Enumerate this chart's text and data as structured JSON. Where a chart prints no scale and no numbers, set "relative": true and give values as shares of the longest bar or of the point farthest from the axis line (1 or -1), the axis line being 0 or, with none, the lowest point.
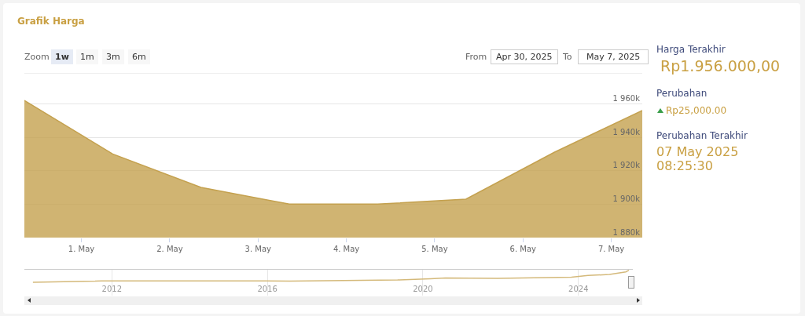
{
  "chart_data": [
    {
      "type": "area",
      "title": "Grafik Harga",
      "x": [
        "2025-04-30T08:30",
        "2025-05-01T08:30",
        "2025-05-02T08:30",
        "2025-05-03T08:30",
        "2025-05-04T08:30",
        "2025-05-05T08:30",
        "2025-05-06T08:30",
        "2025-05-07T08:25"
      ],
      "series": [
        {
          "color": "#c4a14f",
          "values": [
            1962000,
            1930000,
            1910000,
            1900000,
            1900000,
            1903000,
            1931000,
            1956000
          ]
        }
      ],
      "xlim": [
        "2025-04-30T08:30",
        "2025-05-07T08:25"
      ],
      "xticks": [
        {
          "value": "2025-05-01",
          "label": "1. May"
        },
        {
          "value": "2025-05-02",
          "label": "2. May"
        },
        {
          "value": "2025-05-03",
          "label": "3. May"
        },
        {
          "value": "2025-05-04",
          "label": "4. May"
        },
        {
          "value": "2025-05-05",
          "label": "5. May"
        },
        {
          "value": "2025-05-06",
          "label": "6. May"
        },
        {
          "value": "2025-05-07",
          "label": "7. May"
        }
      ],
      "ylim": [
        1880000,
        1978000
      ],
      "yticks": [
        {
          "value": 1880000,
          "label": "1 880k"
        },
        {
          "value": 1900000,
          "label": "1 900k"
        },
        {
          "value": 1920000,
          "label": "1 920k"
        },
        {
          "value": 1940000,
          "label": "1 940k"
        },
        {
          "value": 1960000,
          "label": "1 960k"
        }
      ],
      "grid": "y",
      "annotations": [
        "Zoom",
        "1w",
        "1m",
        "3m",
        "6m",
        "From",
        "Apr 30, 2025",
        "To",
        "May 7, 2025",
        "Harga Terakhir",
        "Rp1.956.000,00",
        "Perubahan",
        "Rp25,000.00",
        "Perubahan Terakhir",
        "07 May 2025 08:25:30"
      ]
    },
    {
      "type": "line",
      "relative": true,
      "x": [
        2009.97,
        2011.57,
        2011.73,
        2015.94,
        2016.57,
        2019.35,
        2020.2,
        2020.58,
        2021.92,
        2023.82,
        2024.25,
        2024.8,
        2025.22,
        2025.3
      ],
      "series": [
        {
          "color": "#d4b97a",
          "values": [
            0,
            0.09,
            0.12,
            0.12,
            0.1,
            0.19,
            0.3,
            0.36,
            0.32,
            0.43,
            0.57,
            0.65,
            0.87,
            1
          ]
        }
      ],
      "xlim": [
        2009.75,
        2025.4
      ],
      "xticks": [
        2012,
        2016,
        2020,
        2024
      ],
      "grid": "x"
    }
  ]
}
